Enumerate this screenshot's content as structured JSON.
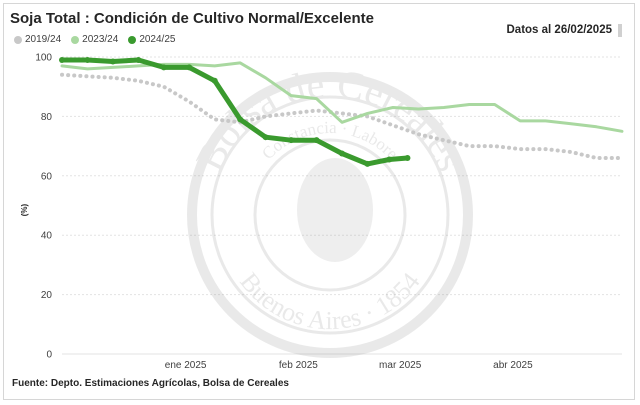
{
  "header": {
    "title": "Soja Total : Condición de Cultivo Normal/Excelente",
    "date_label": "Datos al 26/02/2025"
  },
  "footer": {
    "source": "Fuente: Depto. Estimaciones Agrícolas, Bolsa de Cereales"
  },
  "watermark": {
    "line1": "Bolsa de Cereales",
    "line2": "Constancia · Labore",
    "line3": "Buenos Aires · 1854"
  },
  "chart_data": {
    "type": "line",
    "title": "Soja Total : Condición de Cultivo Normal/Excelente",
    "xlabel": "",
    "ylabel": "(%)",
    "ylim": [
      0,
      100
    ],
    "yticks": [
      0,
      20,
      40,
      60,
      80,
      100
    ],
    "grid": true,
    "legend_position": "top-left",
    "xlim": [
      "2024-11-28",
      "2025-05-01"
    ],
    "xticks": [
      {
        "label": "ene 2025",
        "date": "2025-01-01"
      },
      {
        "label": "feb 2025",
        "date": "2025-02-01"
      },
      {
        "label": "mar 2025",
        "date": "2025-03-01"
      },
      {
        "label": "abr 2025",
        "date": "2025-04-01"
      }
    ],
    "series": [
      {
        "name": "2019/24",
        "color": "#c8c8c8",
        "style": "dotted",
        "points": [
          {
            "x": "2024-11-28",
            "y": 94
          },
          {
            "x": "2024-12-05",
            "y": 93.5
          },
          {
            "x": "2024-12-12",
            "y": 93
          },
          {
            "x": "2024-12-19",
            "y": 92
          },
          {
            "x": "2024-12-26",
            "y": 90
          },
          {
            "x": "2025-01-02",
            "y": 85
          },
          {
            "x": "2025-01-09",
            "y": 79
          },
          {
            "x": "2025-01-16",
            "y": 78
          },
          {
            "x": "2025-01-23",
            "y": 80
          },
          {
            "x": "2025-01-30",
            "y": 81
          },
          {
            "x": "2025-02-06",
            "y": 82
          },
          {
            "x": "2025-02-13",
            "y": 81
          },
          {
            "x": "2025-02-20",
            "y": 80
          },
          {
            "x": "2025-02-27",
            "y": 77
          },
          {
            "x": "2025-03-06",
            "y": 74
          },
          {
            "x": "2025-03-13",
            "y": 72
          },
          {
            "x": "2025-03-20",
            "y": 70
          },
          {
            "x": "2025-03-27",
            "y": 70
          },
          {
            "x": "2025-04-03",
            "y": 69
          },
          {
            "x": "2025-04-10",
            "y": 69
          },
          {
            "x": "2025-04-17",
            "y": 68
          },
          {
            "x": "2025-04-24",
            "y": 66
          },
          {
            "x": "2025-05-01",
            "y": 66
          }
        ]
      },
      {
        "name": "2023/24",
        "color": "#a9d8a0",
        "style": "solid",
        "points": [
          {
            "x": "2024-11-28",
            "y": 97
          },
          {
            "x": "2024-12-05",
            "y": 96
          },
          {
            "x": "2024-12-12",
            "y": 96.5
          },
          {
            "x": "2024-12-19",
            "y": 97
          },
          {
            "x": "2024-12-26",
            "y": 97.5
          },
          {
            "x": "2025-01-02",
            "y": 97.5
          },
          {
            "x": "2025-01-09",
            "y": 97
          },
          {
            "x": "2025-01-16",
            "y": 98
          },
          {
            "x": "2025-01-23",
            "y": 93
          },
          {
            "x": "2025-01-30",
            "y": 87
          },
          {
            "x": "2025-02-06",
            "y": 86
          },
          {
            "x": "2025-02-13",
            "y": 78
          },
          {
            "x": "2025-02-20",
            "y": 81
          },
          {
            "x": "2025-02-27",
            "y": 83
          },
          {
            "x": "2025-03-06",
            "y": 82.5
          },
          {
            "x": "2025-03-13",
            "y": 83
          },
          {
            "x": "2025-03-20",
            "y": 84
          },
          {
            "x": "2025-03-27",
            "y": 84
          },
          {
            "x": "2025-04-03",
            "y": 78.5
          },
          {
            "x": "2025-04-10",
            "y": 78.5
          },
          {
            "x": "2025-04-17",
            "y": 77.5
          },
          {
            "x": "2025-04-24",
            "y": 76.5
          },
          {
            "x": "2025-05-01",
            "y": 75
          }
        ]
      },
      {
        "name": "2024/25",
        "color": "#3a9a2e",
        "style": "solid-bold",
        "points": [
          {
            "x": "2024-11-28",
            "y": 99
          },
          {
            "x": "2024-12-05",
            "y": 99
          },
          {
            "x": "2024-12-12",
            "y": 98.5
          },
          {
            "x": "2024-12-19",
            "y": 99
          },
          {
            "x": "2024-12-26",
            "y": 96.5
          },
          {
            "x": "2025-01-02",
            "y": 96.5
          },
          {
            "x": "2025-01-09",
            "y": 92
          },
          {
            "x": "2025-01-16",
            "y": 79
          },
          {
            "x": "2025-01-23",
            "y": 73
          },
          {
            "x": "2025-01-30",
            "y": 72
          },
          {
            "x": "2025-02-06",
            "y": 72
          },
          {
            "x": "2025-02-13",
            "y": 67.5
          },
          {
            "x": "2025-02-20",
            "y": 64
          },
          {
            "x": "2025-02-26",
            "y": 65.5
          },
          {
            "x": "2025-03-03",
            "y": 66
          }
        ]
      }
    ]
  }
}
